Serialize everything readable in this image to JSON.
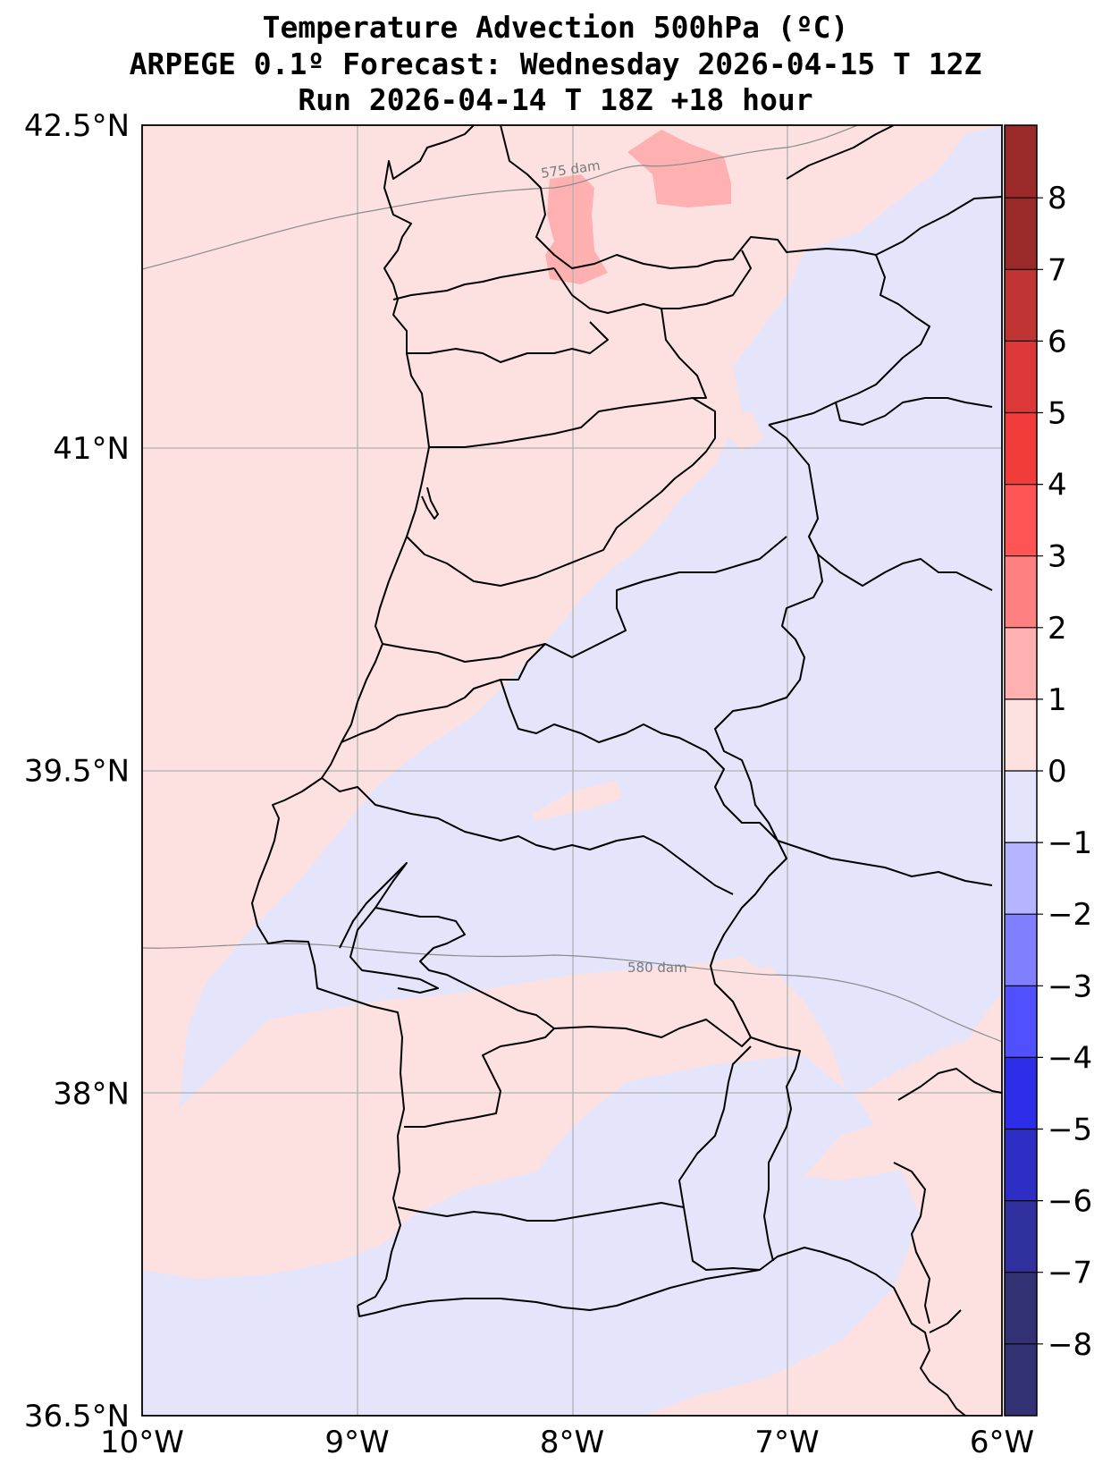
{
  "header": {
    "title_line1": "Temperature Advection  500hPa (ºC)",
    "title_line2": "ARPEGE 0.1º Forecast: Wednesday 2026-04-15 T 12Z",
    "title_line3": "Run 2026-04-14 T 18Z +18 hour"
  },
  "map": {
    "lon_range": [
      -10,
      -6
    ],
    "lat_range": [
      36.5,
      42.5
    ],
    "lon_ticks": [
      {
        "value": -10,
        "label": "10°W"
      },
      {
        "value": -9,
        "label": "9°W"
      },
      {
        "value": -8,
        "label": "8°W"
      },
      {
        "value": -7,
        "label": "7°W"
      },
      {
        "value": -6,
        "label": "6°W"
      }
    ],
    "lat_ticks": [
      {
        "value": 42.5,
        "label": "42.5°N"
      },
      {
        "value": 41,
        "label": "41°N"
      },
      {
        "value": 39.5,
        "label": "39.5°N"
      },
      {
        "value": 38,
        "label": "38°N"
      },
      {
        "value": 36.5,
        "label": "36.5°N"
      }
    ],
    "contour_labels": {
      "upper": "575 dam",
      "lower": "580 dam"
    },
    "colors": {
      "pos_0_1": "#fde1e1",
      "pos_1_2": "#ffb0b0",
      "neg_0_1": "#e4e4fb",
      "coast": "#000000",
      "grid": "#b0b0b0",
      "contour": "#8a8a8a"
    }
  },
  "colorbar": {
    "ticks": [
      "8",
      "7",
      "6",
      "5",
      "4",
      "3",
      "2",
      "1",
      "0",
      "−1",
      "−2",
      "−3",
      "−4",
      "−5",
      "−6",
      "−7",
      "−8"
    ],
    "band_colors": [
      "#9a2a2a",
      "#c03434",
      "#dc3838",
      "#f23c3c",
      "#ff5454",
      "#ff8080",
      "#ffb0b0",
      "#fde1e1",
      "#e4e4fb",
      "#b4b4ff",
      "#8080ff",
      "#5050ff",
      "#2e2ee8",
      "#2e2ec4",
      "#30309e",
      "#323274"
    ]
  }
}
